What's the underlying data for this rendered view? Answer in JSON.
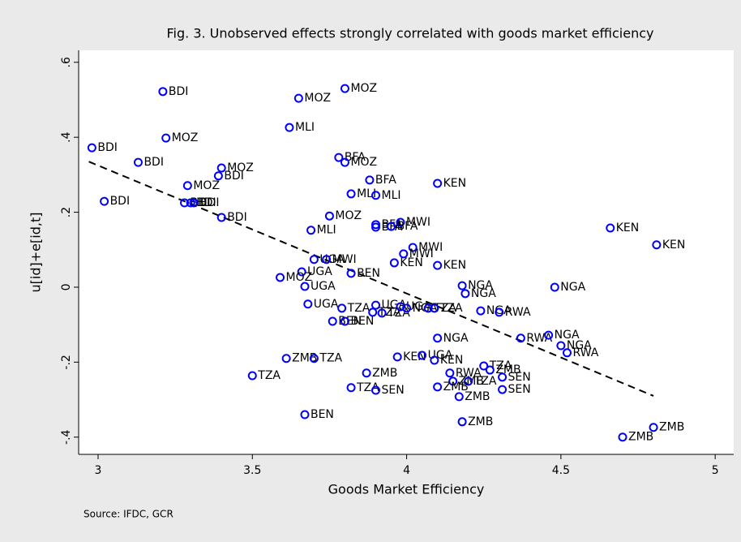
{
  "chart_data": {
    "type": "scatter",
    "title": "Fig. 3. Unobserved effects strongly correlated with goods market efficiency",
    "xlabel": "Goods Market Efficiency",
    "ylabel": "u[id]+e[id,t]",
    "note": "Source: IFDC, GCR",
    "color": "#0000ff",
    "grid": false,
    "xlim": [
      2.937,
      5.06
    ],
    "ylim": [
      -0.446,
      0.632
    ],
    "xticks": [
      3,
      3.5,
      4,
      4.5,
      5
    ],
    "yticks": [
      {
        "value": -0.4,
        "label": "-.4"
      },
      {
        "value": -0.2,
        "label": "-.2"
      },
      0,
      {
        "value": 0.2,
        "label": ".2"
      },
      {
        "value": 0.4,
        "label": ".4"
      },
      {
        "value": 0.6,
        "label": ".6"
      }
    ],
    "x": [
      2.98,
      3.21,
      3.22,
      3.13,
      3.02,
      3.4,
      3.39,
      3.29,
      3.28,
      3.3,
      3.31,
      3.4,
      3.65,
      3.8,
      3.62,
      3.78,
      3.8,
      3.88,
      3.82,
      3.9,
      4.1,
      3.75,
      3.69,
      3.9,
      3.9,
      3.98,
      3.95,
      4.66,
      4.81,
      4.02,
      3.99,
      3.96,
      4.1,
      3.7,
      3.74,
      3.66,
      3.59,
      3.82,
      3.67,
      4.18,
      4.19,
      4.48,
      3.68,
      3.79,
      3.9,
      3.89,
      3.92,
      3.98,
      4.0,
      4.07,
      4.09,
      4.24,
      4.3,
      3.76,
      3.8,
      4.1,
      4.37,
      4.46,
      4.5,
      4.52,
      3.61,
      3.7,
      3.97,
      4.05,
      4.09,
      4.25,
      4.27,
      3.5,
      3.87,
      4.14,
      4.15,
      4.2,
      4.31,
      4.1,
      3.82,
      3.9,
      4.31,
      4.17,
      4.18,
      3.67,
      4.8,
      4.7
    ],
    "values": [
      0.372,
      0.522,
      0.398,
      0.333,
      0.229,
      0.318,
      0.297,
      0.271,
      0.225,
      0.225,
      0.225,
      0.186,
      0.504,
      0.53,
      0.426,
      0.346,
      0.333,
      0.286,
      0.249,
      0.245,
      0.277,
      0.19,
      0.152,
      0.167,
      0.16,
      0.173,
      0.162,
      0.158,
      0.113,
      0.106,
      0.089,
      0.065,
      0.058,
      0.074,
      0.074,
      0.041,
      0.026,
      0.037,
      0.002,
      0.004,
      -0.017,
      0.0,
      -0.045,
      -0.056,
      -0.048,
      -0.067,
      -0.069,
      -0.052,
      -0.056,
      -0.056,
      -0.056,
      -0.063,
      -0.067,
      -0.091,
      -0.091,
      -0.136,
      -0.136,
      -0.128,
      -0.156,
      -0.175,
      -0.19,
      -0.19,
      -0.186,
      -0.182,
      -0.195,
      -0.21,
      -0.221,
      -0.236,
      -0.229,
      -0.229,
      -0.251,
      -0.251,
      -0.24,
      -0.266,
      -0.268,
      -0.275,
      -0.273,
      -0.292,
      -0.359,
      -0.34,
      -0.374,
      -0.4
    ],
    "point_labels": [
      "BDI",
      "BDI",
      "MOZ",
      "BDI",
      "BDI",
      "MOZ",
      "BDI",
      "MOZ",
      "BDI",
      "BDI",
      "BDI",
      "BDI",
      "MOZ",
      "MOZ",
      "MLI",
      "BFA",
      "MOZ",
      "BFA",
      "MLI",
      "MLI",
      "KEN",
      "MOZ",
      "MLI",
      "BFA",
      "BFA",
      "MWI",
      "BFA",
      "KEN",
      "KEN",
      "MWI",
      "MWI",
      "KEN",
      "KEN",
      "UGA",
      "MWI",
      "UGA",
      "MOZ",
      "BEN",
      "UGA",
      "NGA",
      "NGA",
      "NGA",
      "UGA",
      "TZA",
      "UGA",
      "TZA",
      "TZA",
      "UGA",
      "NGA",
      "TZA",
      "TZA",
      "NGA",
      "RWA",
      "BEN",
      "BEN",
      "NGA",
      "RWA",
      "NGA",
      "NGA",
      "RWA",
      "ZMB",
      "TZA",
      "KEN",
      "UGA",
      "KEN",
      "TZA",
      "ZMB",
      "TZA",
      "ZMB",
      "RWA",
      "ZMB",
      "TZA",
      "SEN",
      "ZMB",
      "TZA",
      "SEN",
      "SEN",
      "ZMB",
      "ZMB",
      "BEN",
      "ZMB",
      "ZMB"
    ],
    "fit": {
      "x": [
        2.97,
        4.8
      ],
      "y": [
        0.335,
        -0.29
      ]
    }
  }
}
